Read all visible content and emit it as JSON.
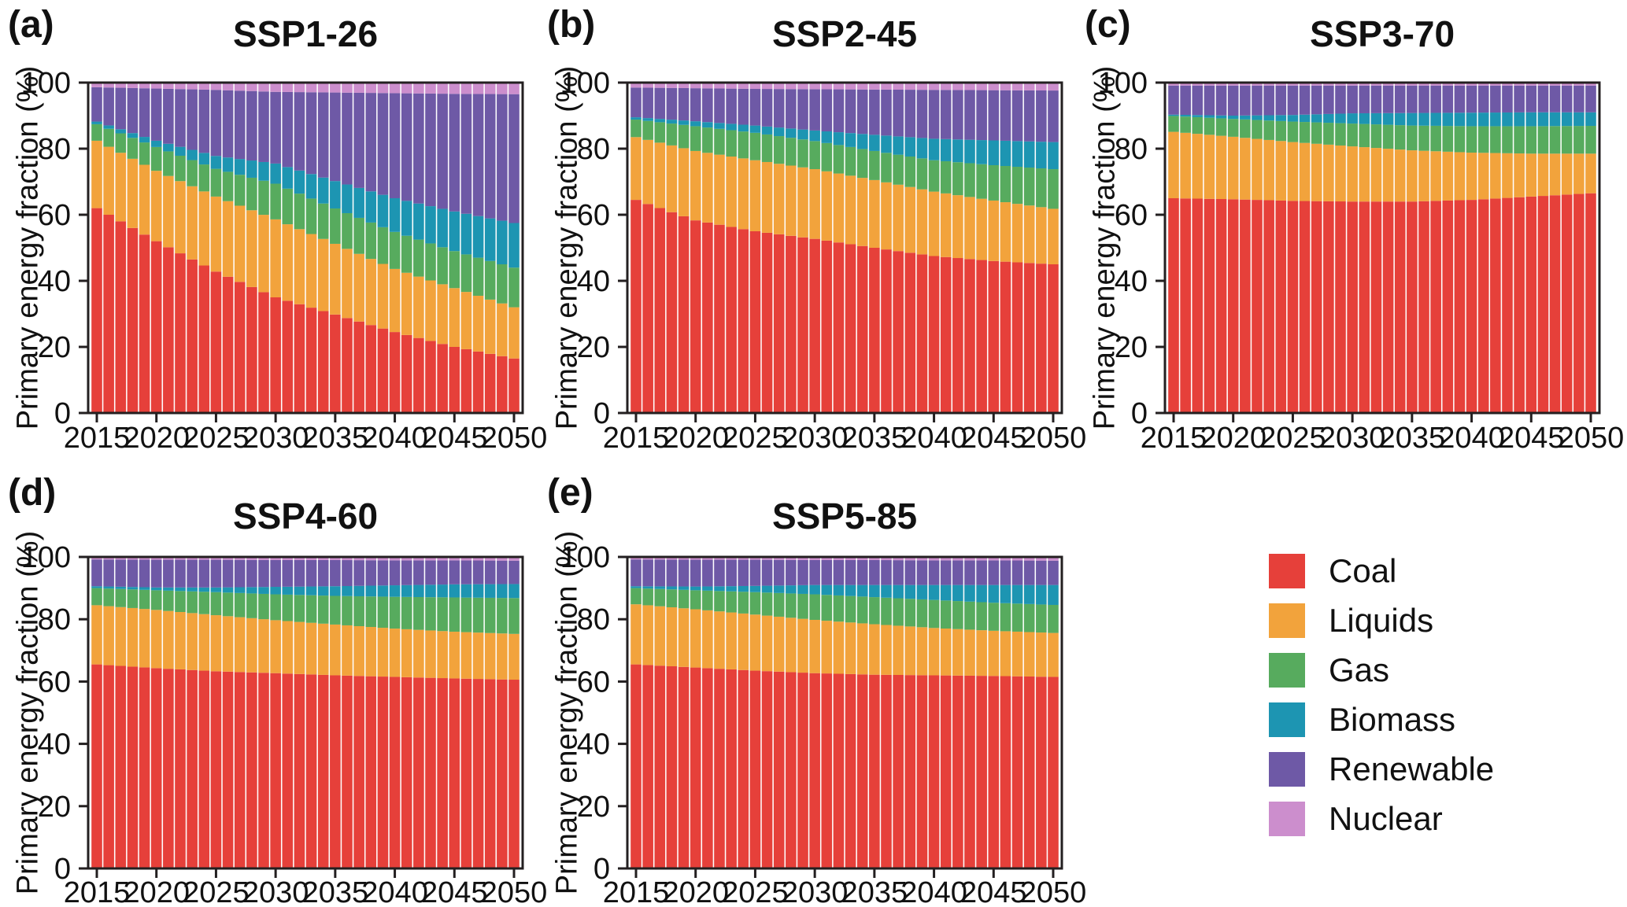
{
  "figure": {
    "background": "#ffffff",
    "axis_color": "#231f20",
    "ylabel": "Primary energy fraction (%)",
    "y_ticks": [
      0,
      20,
      40,
      60,
      80,
      100
    ],
    "ylim": [
      0,
      100
    ],
    "x_tick_years": [
      2015,
      2020,
      2025,
      2030,
      2035,
      2040,
      2045,
      2050
    ],
    "bar_resolution": "annual bars 2015-2050 (36 bars per panel); series values listed at 5-year anchors, intermediate years interpolated linearly",
    "series_colors": {
      "Coal": "#e6403a",
      "Liquids": "#f2a33c",
      "Gas": "#57ab5e",
      "Biomass": "#1d95b2",
      "Renewable": "#6e59a6",
      "Nuclear": "#cc8ecd"
    }
  },
  "legend": {
    "position": "bottom-right",
    "entries": [
      {
        "label": "Coal"
      },
      {
        "label": "Liquids"
      },
      {
        "label": "Gas"
      },
      {
        "label": "Biomass"
      },
      {
        "label": "Renewable"
      },
      {
        "label": "Nuclear"
      }
    ]
  },
  "chart_data": [
    {
      "type": "bar",
      "stacked": true,
      "panel_letter": "(a)",
      "title": "SSP1-26",
      "xlabel": "",
      "ylabel": "Primary energy fraction (%)",
      "x": [
        2015,
        2020,
        2025,
        2030,
        2035,
        2040,
        2045,
        2050
      ],
      "series": [
        {
          "name": "Coal",
          "values": [
            62.0,
            52.0,
            42.8,
            35.0,
            29.8,
            24.5,
            20.0,
            16.5
          ]
        },
        {
          "name": "Liquids",
          "values": [
            20.4,
            21.3,
            22.7,
            23.6,
            21.4,
            19.1,
            17.8,
            15.5
          ]
        },
        {
          "name": "Gas",
          "values": [
            5.0,
            7.2,
            8.4,
            10.8,
            10.7,
            11.2,
            11.2,
            12.0
          ]
        },
        {
          "name": "Biomass",
          "values": [
            0.8,
            1.9,
            3.9,
            6.1,
            8.3,
            10.2,
            12.0,
            13.5
          ]
        },
        {
          "name": "Renewable",
          "values": [
            10.4,
            15.8,
            20.0,
            21.7,
            26.8,
            31.8,
            35.6,
            39.0
          ]
        },
        {
          "name": "Nuclear",
          "values": [
            1.4,
            1.8,
            2.2,
            2.8,
            3.0,
            3.2,
            3.4,
            3.5
          ]
        }
      ]
    },
    {
      "type": "bar",
      "stacked": true,
      "panel_letter": "(b)",
      "title": "SSP2-45",
      "xlabel": "",
      "ylabel": "Primary energy fraction (%)",
      "x": [
        2015,
        2020,
        2025,
        2030,
        2035,
        2040,
        2045,
        2050
      ],
      "series": [
        {
          "name": "Coal",
          "values": [
            64.5,
            58.3,
            55.0,
            52.7,
            50.0,
            47.5,
            46.0,
            45.0
          ]
        },
        {
          "name": "Liquids",
          "values": [
            19.0,
            21.0,
            21.5,
            21.1,
            20.5,
            19.5,
            18.3,
            16.8
          ]
        },
        {
          "name": "Gas",
          "values": [
            5.3,
            7.5,
            8.3,
            8.5,
            8.8,
            9.5,
            10.7,
            12.0
          ]
        },
        {
          "name": "Biomass",
          "values": [
            0.7,
            1.5,
            2.2,
            3.2,
            4.9,
            6.5,
            7.5,
            8.2
          ]
        },
        {
          "name": "Renewable",
          "values": [
            9.0,
            10.0,
            11.1,
            12.5,
            13.7,
            14.8,
            15.2,
            15.6
          ]
        },
        {
          "name": "Nuclear",
          "values": [
            1.5,
            1.7,
            1.9,
            2.0,
            2.1,
            2.2,
            2.3,
            2.4
          ]
        }
      ]
    },
    {
      "type": "bar",
      "stacked": true,
      "panel_letter": "(c)",
      "title": "SSP3-70",
      "xlabel": "",
      "ylabel": "Primary energy fraction (%)",
      "x": [
        2015,
        2020,
        2025,
        2030,
        2035,
        2040,
        2045,
        2050
      ],
      "series": [
        {
          "name": "Coal",
          "values": [
            65.0,
            64.7,
            64.2,
            64.0,
            64.0,
            64.5,
            65.5,
            66.5
          ]
        },
        {
          "name": "Liquids",
          "values": [
            20.1,
            18.9,
            17.8,
            16.7,
            15.5,
            14.3,
            13.0,
            12.0
          ]
        },
        {
          "name": "Gas",
          "values": [
            4.8,
            5.4,
            6.2,
            6.9,
            7.5,
            8.0,
            8.3,
            8.4
          ]
        },
        {
          "name": "Biomass",
          "values": [
            0.4,
            1.0,
            2.0,
            3.1,
            3.8,
            4.1,
            4.2,
            4.1
          ]
        },
        {
          "name": "Renewable",
          "values": [
            8.8,
            9.1,
            8.9,
            8.4,
            8.3,
            8.2,
            8.1,
            8.1
          ]
        },
        {
          "name": "Nuclear",
          "values": [
            0.9,
            0.9,
            0.9,
            0.9,
            0.9,
            0.9,
            0.9,
            0.9
          ]
        }
      ]
    },
    {
      "type": "bar",
      "stacked": true,
      "panel_letter": "(d)",
      "title": "SSP4-60",
      "xlabel": "",
      "ylabel": "Primary energy fraction (%)",
      "x": [
        2015,
        2020,
        2025,
        2030,
        2035,
        2040,
        2045,
        2050
      ],
      "series": [
        {
          "name": "Coal",
          "values": [
            65.5,
            64.3,
            63.3,
            62.7,
            62.0,
            61.5,
            61.0,
            60.6
          ]
        },
        {
          "name": "Liquids",
          "values": [
            19.0,
            18.7,
            18.0,
            17.0,
            16.3,
            15.5,
            15.0,
            14.7
          ]
        },
        {
          "name": "Gas",
          "values": [
            5.5,
            6.3,
            7.4,
            8.3,
            9.2,
            10.2,
            11.0,
            11.5
          ]
        },
        {
          "name": "Biomass",
          "values": [
            0.6,
            0.9,
            1.5,
            2.4,
            3.1,
            3.7,
            4.2,
            4.5
          ]
        },
        {
          "name": "Renewable",
          "values": [
            8.6,
            8.9,
            8.9,
            8.6,
            8.4,
            8.0,
            7.7,
            7.5
          ]
        },
        {
          "name": "Nuclear",
          "values": [
            0.8,
            0.9,
            0.9,
            1.0,
            1.0,
            1.1,
            1.1,
            1.2
          ]
        }
      ]
    },
    {
      "type": "bar",
      "stacked": true,
      "panel_letter": "(e)",
      "title": "SSP5-85",
      "xlabel": "",
      "ylabel": "Primary energy fraction (%)",
      "x": [
        2015,
        2020,
        2025,
        2030,
        2035,
        2040,
        2045,
        2050
      ],
      "series": [
        {
          "name": "Coal",
          "values": [
            65.5,
            64.5,
            63.5,
            62.7,
            62.2,
            62.0,
            61.8,
            61.5
          ]
        },
        {
          "name": "Liquids",
          "values": [
            19.3,
            18.7,
            18.0,
            17.1,
            16.2,
            15.2,
            14.5,
            14.1
          ]
        },
        {
          "name": "Gas",
          "values": [
            5.2,
            6.1,
            7.2,
            8.2,
            8.7,
            9.0,
            9.0,
            9.0
          ]
        },
        {
          "name": "Biomass",
          "values": [
            0.6,
            1.2,
            2.0,
            3.0,
            3.9,
            4.8,
            5.7,
            6.4
          ]
        },
        {
          "name": "Renewable",
          "values": [
            8.6,
            8.6,
            8.4,
            8.0,
            8.0,
            7.9,
            7.9,
            7.8
          ]
        },
        {
          "name": "Nuclear",
          "values": [
            0.8,
            0.9,
            0.9,
            1.0,
            1.0,
            1.1,
            1.1,
            1.2
          ]
        }
      ]
    }
  ]
}
